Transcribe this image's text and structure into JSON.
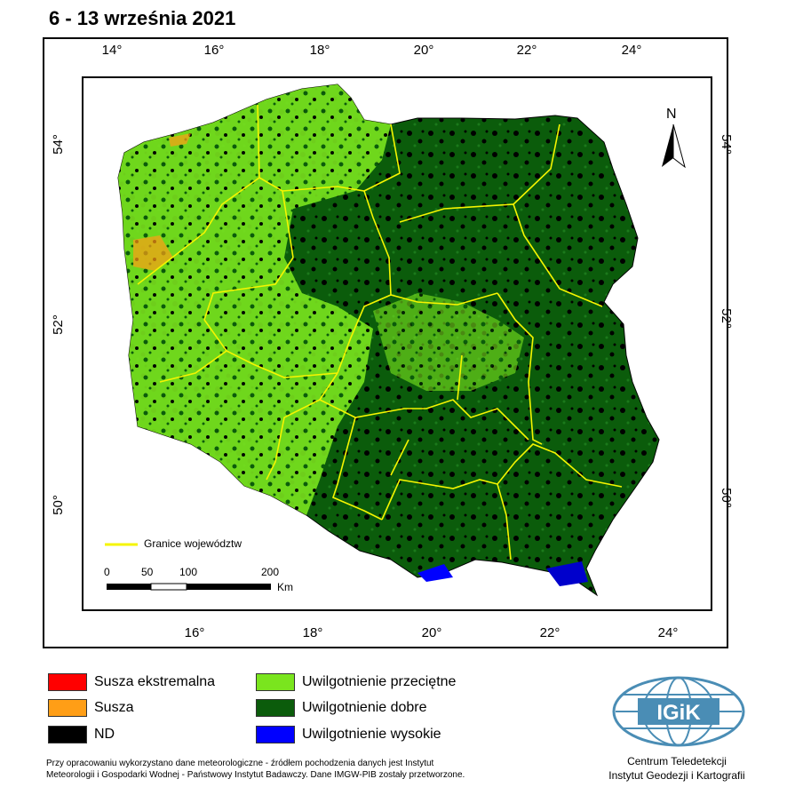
{
  "title": "6 - 13 września 2021",
  "axes": {
    "top_ticks": [
      "14°",
      "16°",
      "18°",
      "20°",
      "22°",
      "24°"
    ],
    "bottom_ticks": [
      "16°",
      "18°",
      "20°",
      "22°",
      "24°"
    ],
    "left_ticks": [
      "54°",
      "52°",
      "50°"
    ],
    "right_ticks": [
      "54°",
      "52°",
      "50°"
    ]
  },
  "map": {
    "north_label": "N",
    "boundary_legend": "Granice województw",
    "scale_labels": [
      "0",
      "50",
      "100",
      "200"
    ],
    "scale_unit": "Km"
  },
  "legend": [
    {
      "label": "Susza ekstremalna",
      "color": "#ff0000"
    },
    {
      "label": "Susza",
      "color": "#ff9e16"
    },
    {
      "label": "ND",
      "color": "#000000"
    },
    {
      "label": "Uwilgotnienie przeciętne",
      "color": "#7ae51e"
    },
    {
      "label": "Uwilgotnienie dobre",
      "color": "#0b5c0b"
    },
    {
      "label": "Uwilgotnienie wysokie",
      "color": "#0000ff"
    }
  ],
  "footnote": {
    "line1": "Przy opracowaniu wykorzystano dane meteorologiczne - źródłem pochodzenia danych jest Instytut",
    "line2": "Meteorologii i Gospodarki Wodnej - Państwowy Instytut Badawczy. Dane IMGW-PIB zostały przetworzone."
  },
  "logo": {
    "text": "IGiK",
    "caption_line1": "Centrum Teledetekcji",
    "caption_line2": "Instytut Geodezji i Kartografii"
  }
}
